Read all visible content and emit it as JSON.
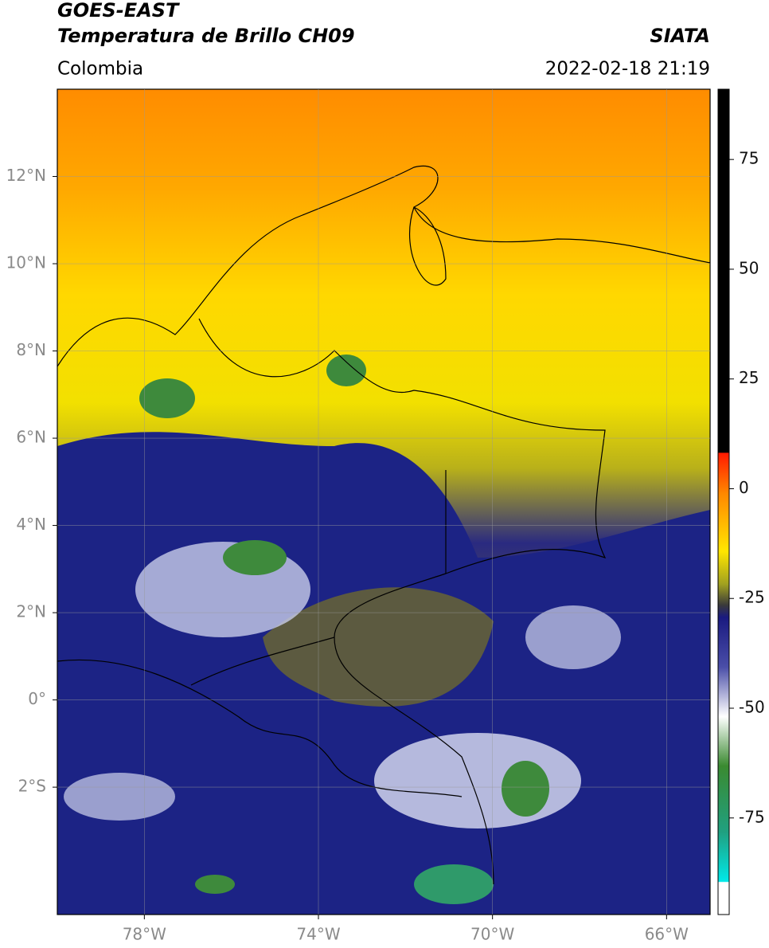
{
  "header": {
    "title": "GOES-EAST",
    "subtitle": "Temperatura de Brillo CH09",
    "source": "SIATA",
    "region": "Colombia",
    "datetime": "2022-02-18 21:19"
  },
  "map": {
    "xlim": [
      -80,
      -65
    ],
    "ylim": [
      -4.92,
      14
    ],
    "xticks": [
      {
        "value": -78,
        "label": "78°W"
      },
      {
        "value": -74,
        "label": "74°W"
      },
      {
        "value": -70,
        "label": "70°W"
      },
      {
        "value": -66,
        "label": "66°W"
      }
    ],
    "yticks": [
      {
        "value": 12,
        "label": "12°N"
      },
      {
        "value": 10,
        "label": "10°N"
      },
      {
        "value": 8,
        "label": "8°N"
      },
      {
        "value": 6,
        "label": "6°N"
      },
      {
        "value": 4,
        "label": "4°N"
      },
      {
        "value": 2,
        "label": "2°N"
      },
      {
        "value": 0,
        "label": "0°"
      },
      {
        "value": -2,
        "label": "2°S"
      }
    ],
    "grid": true
  },
  "colorbar": {
    "lim": [
      -97,
      91
    ],
    "ticks": [
      75,
      50,
      25,
      0,
      -25,
      -50,
      -75
    ]
  }
}
